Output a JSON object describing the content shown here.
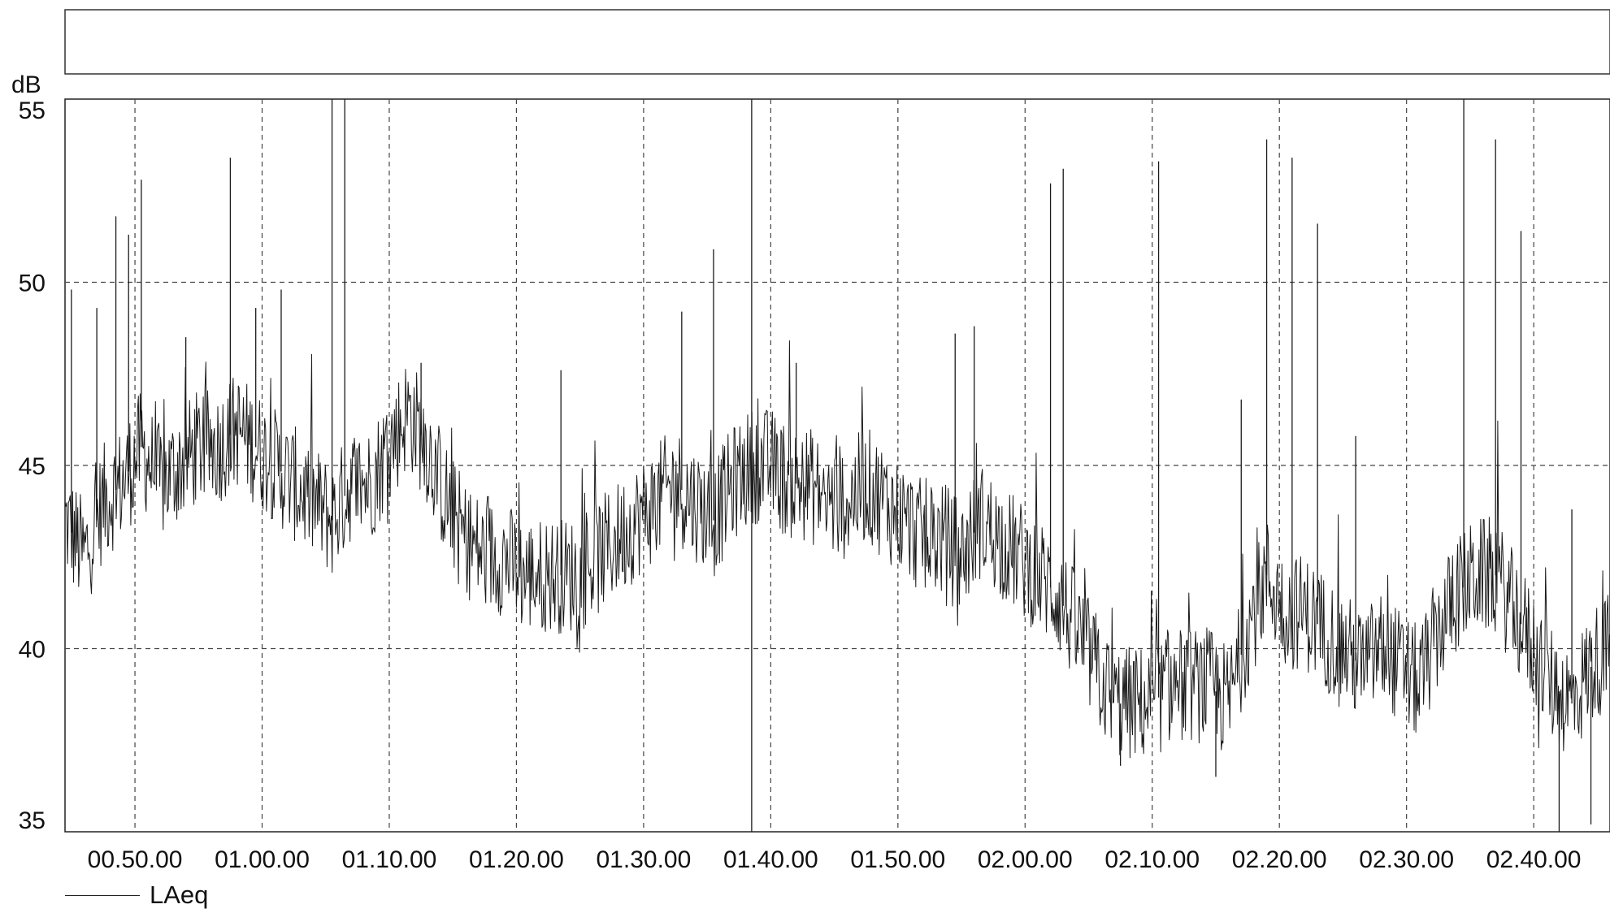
{
  "chart_data": {
    "type": "line",
    "ylabel": "dB",
    "ylim": [
      35,
      55
    ],
    "yticks": [
      35,
      40,
      45,
      50,
      55
    ],
    "xlim": [
      "00.44.30",
      "02.46.00"
    ],
    "xticks": [
      "00.50.00",
      "01.00.00",
      "01.10.00",
      "01.20.00",
      "01.30.00",
      "01.40.00",
      "01.50.00",
      "02.00.00",
      "02.10.00",
      "02.20.00",
      "02.30.00",
      "02.40.00"
    ],
    "grid": true,
    "legend_position": "bottom-left",
    "series": [
      {
        "name": "LAeq",
        "color": "#1a1a1a",
        "x": [
          "00.44.30",
          "00.46.00",
          "00.47.30",
          "00.49.00",
          "00.50.30",
          "00.52.00",
          "00.53.30",
          "00.55.00",
          "00.56.30",
          "00.58.00",
          "00.59.30",
          "01.01.00",
          "01.02.30",
          "01.04.00",
          "01.05.30",
          "01.07.00",
          "01.08.30",
          "01.10.00",
          "01.11.30",
          "01.13.00",
          "01.14.30",
          "01.16.00",
          "01.17.30",
          "01.19.00",
          "01.20.30",
          "01.22.00",
          "01.23.30",
          "01.25.00",
          "01.26.30",
          "01.28.00",
          "01.29.30",
          "01.31.00",
          "01.32.30",
          "01.34.00",
          "01.35.30",
          "01.37.00",
          "01.38.30",
          "01.40.00",
          "01.41.30",
          "01.43.00",
          "01.44.30",
          "01.46.00",
          "01.47.30",
          "01.49.00",
          "01.50.30",
          "01.52.00",
          "01.53.30",
          "01.55.00",
          "01.56.30",
          "01.58.00",
          "01.59.30",
          "02.01.00",
          "02.02.30",
          "02.04.00",
          "02.05.30",
          "02.07.00",
          "02.08.30",
          "02.10.00",
          "02.11.30",
          "02.13.00",
          "02.14.30",
          "02.16.00",
          "02.17.30",
          "02.19.00",
          "02.20.30",
          "02.22.00",
          "02.23.30",
          "02.25.00",
          "02.26.30",
          "02.28.00",
          "02.29.30",
          "02.31.00",
          "02.32.30",
          "02.34.00",
          "02.35.30",
          "02.37.00",
          "02.38.30",
          "02.40.00",
          "02.41.30",
          "02.43.00",
          "02.44.30",
          "02.46.00"
        ],
        "values": [
          43.5,
          42.5,
          44,
          44.5,
          45.5,
          44.5,
          45,
          45.5,
          45.5,
          46,
          45.5,
          45,
          44.5,
          44,
          43.5,
          44.5,
          44.5,
          45.5,
          46.5,
          45.5,
          44,
          43,
          42.5,
          42.5,
          42,
          42,
          42,
          42,
          42.5,
          43,
          43.5,
          44,
          44.5,
          44,
          43.5,
          44.5,
          45,
          45,
          44.5,
          44.5,
          44,
          44,
          44.5,
          44,
          43.5,
          43,
          43,
          42.5,
          43.5,
          43,
          42.5,
          42,
          41.5,
          40.5,
          39.5,
          38.5,
          38.5,
          38.5,
          39,
          39,
          39,
          38.5,
          40.5,
          42,
          41,
          41,
          40.5,
          40,
          39.5,
          40,
          39.5,
          39,
          40.5,
          41.5,
          42,
          42,
          41,
          40,
          39,
          38.5,
          39.5,
          40
        ]
      }
    ],
    "spikes": [
      {
        "x": "00.45.00",
        "value": 49.8
      },
      {
        "x": "00.47.00",
        "value": 49.3
      },
      {
        "x": "00.48.30",
        "value": 51.8
      },
      {
        "x": "00.49.30",
        "value": 51.3
      },
      {
        "x": "00.50.30",
        "value": 52.8
      },
      {
        "x": "00.54.00",
        "value": 48.5
      },
      {
        "x": "00.57.30",
        "value": 53.4
      },
      {
        "x": "00.59.30",
        "value": 49.3
      },
      {
        "x": "01.01.30",
        "value": 49.8
      },
      {
        "x": "01.05.30",
        "value": 55.0
      },
      {
        "x": "01.06.30",
        "value": 55.0
      },
      {
        "x": "01.12.30",
        "value": 47.8
      },
      {
        "x": "01.23.30",
        "value": 47.6
      },
      {
        "x": "01.33.00",
        "value": 49.2
      },
      {
        "x": "01.35.30",
        "value": 50.9
      },
      {
        "x": "01.38.30",
        "value": 55.0
      },
      {
        "x": "01.42.00",
        "value": 47.8
      },
      {
        "x": "01.54.30",
        "value": 48.6
      },
      {
        "x": "01.56.00",
        "value": 48.8
      },
      {
        "x": "02.02.00",
        "value": 52.7
      },
      {
        "x": "02.03.00",
        "value": 53.1
      },
      {
        "x": "02.10.30",
        "value": 53.3
      },
      {
        "x": "02.17.00",
        "value": 46.8
      },
      {
        "x": "02.19.00",
        "value": 53.9
      },
      {
        "x": "02.21.00",
        "value": 53.4
      },
      {
        "x": "02.23.00",
        "value": 51.6
      },
      {
        "x": "02.26.00",
        "value": 45.8
      },
      {
        "x": "02.34.30",
        "value": 55.0
      },
      {
        "x": "02.37.00",
        "value": 53.9
      },
      {
        "x": "02.39.00",
        "value": 51.4
      },
      {
        "x": "02.43.00",
        "value": 43.8
      }
    ],
    "dips": [
      {
        "x": "01.38.30",
        "value": 35.0
      },
      {
        "x": "02.07.30",
        "value": 36.8
      },
      {
        "x": "02.15.00",
        "value": 36.5
      },
      {
        "x": "02.42.00",
        "value": 35.0
      },
      {
        "x": "02.44.30",
        "value": 35.2
      }
    ]
  }
}
